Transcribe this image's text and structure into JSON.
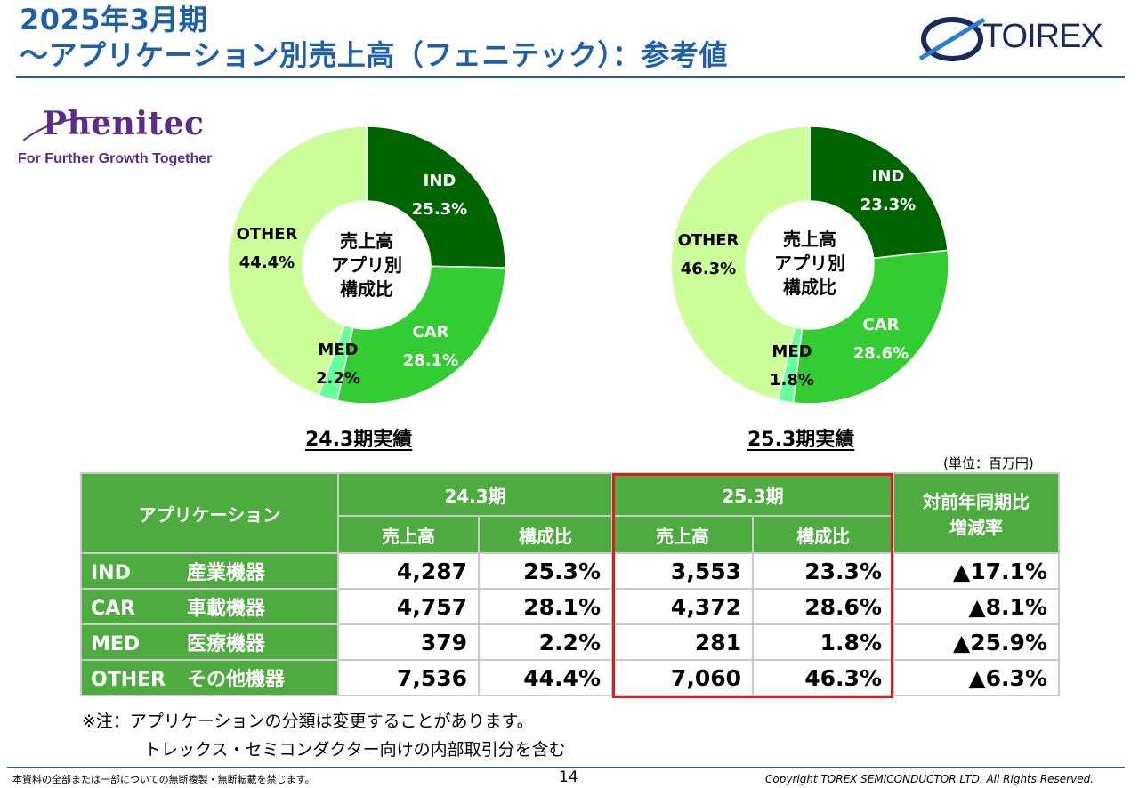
{
  "header": {
    "title_line1": "2025年3月期",
    "title_line2": "～アプリケーション別売上高（フェニテック）：参考値",
    "torex_logo_text": "TOIREX",
    "phenitec_logo_text": "Phenitec",
    "phenitec_tagline": "For Further Growth Together"
  },
  "colors": {
    "title_blue": "#1f5fa8",
    "IND": "#006400",
    "CAR": "#33cc33",
    "MED": "#66ff99",
    "OTHER": "#ccff99",
    "table_green": "#4eab3f",
    "highlight_red": "#d62020"
  },
  "chart_data": [
    {
      "type": "pie",
      "donut": true,
      "center_label": "売上高\nアプリ別\n構成比",
      "center_lines": [
        "売上高",
        "アプリ別",
        "構成比"
      ],
      "caption": "24.3期実績",
      "slices": [
        {
          "name": "IND",
          "value": 25.3,
          "label": "25.3%"
        },
        {
          "name": "CAR",
          "value": 28.1,
          "label": "28.1%"
        },
        {
          "name": "MED",
          "value": 2.2,
          "label": "2.2%"
        },
        {
          "name": "OTHER",
          "value": 44.4,
          "label": "44.4%"
        }
      ]
    },
    {
      "type": "pie",
      "donut": true,
      "center_label": "売上高\nアプリ別\n構成比",
      "center_lines": [
        "売上高",
        "アプリ別",
        "構成比"
      ],
      "caption": "25.3期実績",
      "slices": [
        {
          "name": "IND",
          "value": 23.3,
          "label": "23.3%"
        },
        {
          "name": "CAR",
          "value": 28.6,
          "label": "28.6%"
        },
        {
          "name": "MED",
          "value": 1.8,
          "label": "1.8%"
        },
        {
          "name": "OTHER",
          "value": 46.3,
          "label": "46.3%"
        }
      ]
    },
    {
      "type": "table",
      "unit": "(単位：百万円)",
      "header": {
        "application": "アプリケーション",
        "period1": "24.3期",
        "period2": "25.3期",
        "sales": "売上高",
        "ratio": "構成比",
        "yoy": "対前年同期比\n増減率",
        "yoy_line1": "対前年同期比",
        "yoy_line2": "増減率"
      },
      "rows": [
        {
          "code": "IND",
          "name": "産業機器",
          "sales_243": "4,287",
          "ratio_243": "25.3%",
          "sales_253": "3,553",
          "ratio_253": "23.3%",
          "yoy": "▲17.1%"
        },
        {
          "code": "CAR",
          "name": "車載機器",
          "sales_243": "4,757",
          "ratio_243": "28.1%",
          "sales_253": "4,372",
          "ratio_253": "28.6%",
          "yoy": "▲8.1%"
        },
        {
          "code": "MED",
          "name": "医療機器",
          "sales_243": "379",
          "ratio_243": "2.2%",
          "sales_253": "281",
          "ratio_253": "1.8%",
          "yoy": "▲25.9%"
        },
        {
          "code": "OTHER",
          "name": "その他機器",
          "sales_243": "7,536",
          "ratio_243": "44.4%",
          "sales_253": "7,060",
          "ratio_253": "46.3%",
          "yoy": "▲6.3%"
        }
      ]
    }
  ],
  "notes": {
    "line1": "※注：アプリケーションの分類は変更することがあります。",
    "line2": "トレックス・セミコンダクター向けの内部取引分を含む"
  },
  "footer": {
    "left": "本資料の全部または一部についての無断複製・無断転載を禁じます。",
    "page": "14",
    "right": "Copyright TOREX SEMICONDUCTOR LTD.  All Rights Reserved."
  }
}
